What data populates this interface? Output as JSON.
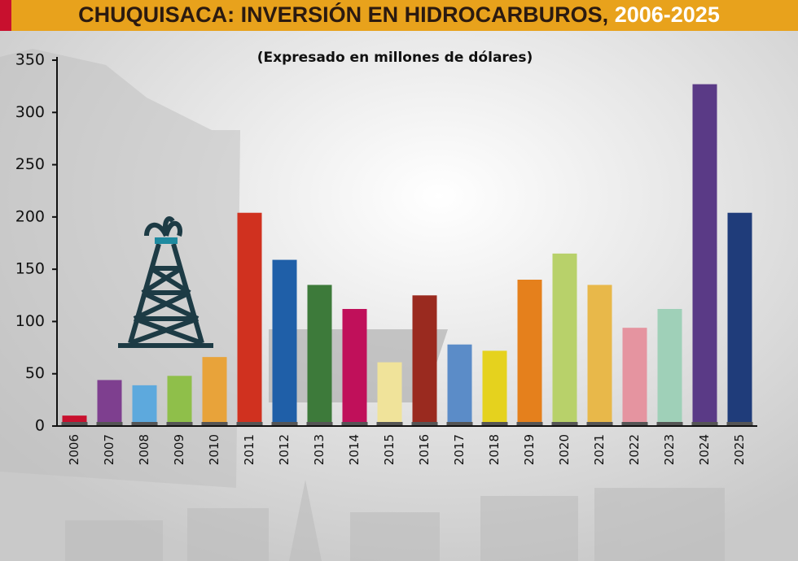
{
  "chart_data": {
    "type": "bar",
    "title": [
      "CHUQUISACA: INVERSIÓN EN HIDROCARBUROS,",
      "2006-2025"
    ],
    "subtitle": "(Expresado en millones de dólares)",
    "categories": [
      "2006",
      "2007",
      "2008",
      "2009",
      "2010",
      "2011",
      "2012",
      "2013",
      "2014",
      "2015",
      "2016",
      "2017",
      "2018",
      "2019",
      "2020",
      "2021",
      "2022",
      "2023",
      "2024",
      "2025"
    ],
    "values": [
      10,
      44,
      39,
      48,
      66,
      204,
      159,
      135,
      112,
      61,
      125,
      78,
      72,
      140,
      165,
      135,
      94,
      112,
      327,
      204
    ],
    "colors": [
      "#c8102e",
      "#7e3f8f",
      "#5da9dd",
      "#8fbf4a",
      "#e8a33a",
      "#d0311f",
      "#1f5fa8",
      "#3d7a3a",
      "#c0105a",
      "#f0e39a",
      "#9a2a1f",
      "#5b8cc8",
      "#e5d21e",
      "#e5801c",
      "#b8d16a",
      "#e8b84a",
      "#e594a0",
      "#9fd0b8",
      "#5a3a86",
      "#1f3c7a"
    ],
    "ylim": [
      0,
      350
    ],
    "yticks": [
      0,
      50,
      100,
      150,
      200,
      250,
      300,
      350
    ]
  }
}
